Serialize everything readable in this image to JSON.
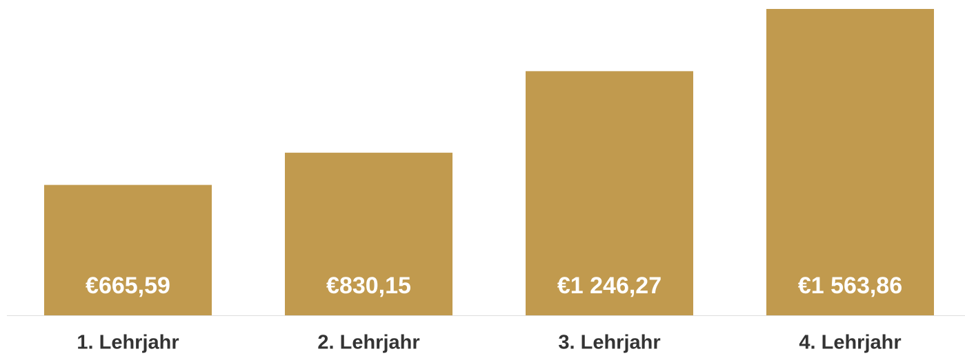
{
  "chart_data": {
    "type": "bar",
    "categories": [
      "1. Lehrjahr",
      "2. Lehrjahr",
      "3. Lehrjahr",
      "4. Lehrjahr"
    ],
    "values": [
      665.59,
      830.15,
      1246.27,
      1563.86
    ],
    "value_labels": [
      "€665,59",
      "€830,15",
      "€1 246,27",
      "€1 563,86"
    ],
    "color": "#c19a4e"
  }
}
